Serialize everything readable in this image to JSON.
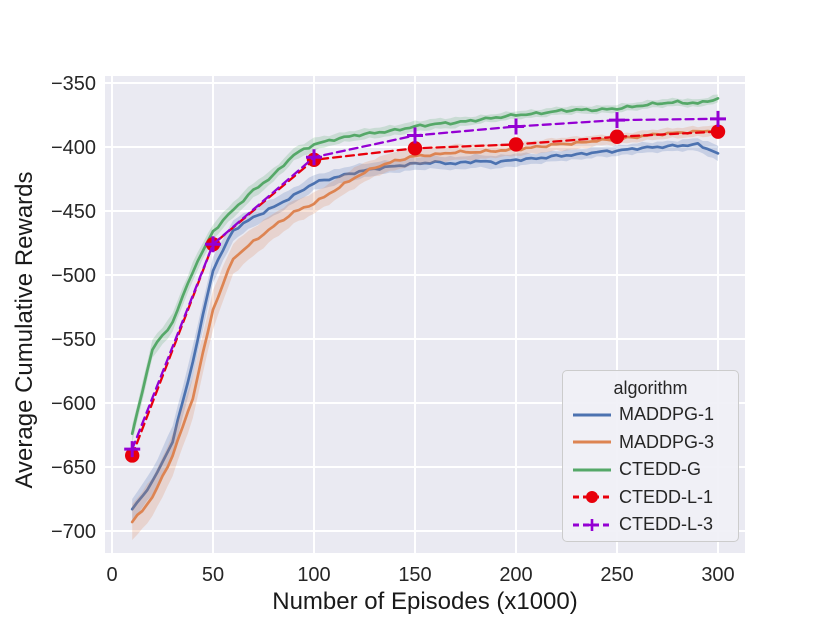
{
  "chart_data": {
    "type": "line",
    "title": "",
    "xlabel": "Number of Episodes (x1000)",
    "ylabel": "Average Cumulative Rewards",
    "xlim": [
      -3.5,
      313
    ],
    "ylim": [
      -717,
      -344
    ],
    "x_ticks": [
      0,
      50,
      100,
      150,
      200,
      250,
      300
    ],
    "y_ticks": [
      -350,
      -400,
      -450,
      -500,
      -550,
      -600,
      -650,
      -700
    ],
    "grid": true,
    "background_color": "#eaeaf2",
    "grid_color": "#ffffff",
    "legend": {
      "title": "algorithm",
      "position": "lower right"
    },
    "series": [
      {
        "name": "MADDPG-1",
        "color": "#4c72b0",
        "style": "solid",
        "marker": null,
        "x": [
          10,
          20,
          30,
          40,
          50,
          60,
          70,
          80,
          90,
          100,
          110,
          120,
          130,
          140,
          150,
          160,
          170,
          180,
          190,
          200,
          210,
          220,
          230,
          240,
          250,
          260,
          270,
          280,
          290,
          300
        ],
        "y": [
          -683,
          -662,
          -630,
          -568,
          -496,
          -465,
          -455,
          -447,
          -438,
          -428,
          -424,
          -420,
          -417,
          -415,
          -413,
          -412,
          -413,
          -411,
          -412,
          -410,
          -409,
          -407,
          -406,
          -404,
          -403,
          -401,
          -400,
          -399,
          -398,
          -405
        ],
        "band_halfwidth": [
          8,
          10,
          12,
          12,
          10,
          8,
          7,
          7,
          6,
          6,
          6,
          6,
          5,
          5,
          5,
          5,
          5,
          5,
          5,
          5,
          4,
          4,
          4,
          4,
          4,
          4,
          4,
          4,
          5,
          6
        ]
      },
      {
        "name": "MADDPG-3",
        "color": "#dd8452",
        "style": "solid",
        "marker": null,
        "x": [
          10,
          20,
          30,
          40,
          50,
          60,
          70,
          80,
          90,
          100,
          110,
          120,
          130,
          140,
          150,
          160,
          170,
          180,
          190,
          200,
          210,
          220,
          230,
          240,
          250,
          260,
          270,
          280,
          290,
          300
        ],
        "y": [
          -693,
          -674,
          -641,
          -596,
          -527,
          -487,
          -474,
          -462,
          -451,
          -444,
          -434,
          -424,
          -416,
          -411,
          -407,
          -406,
          -404,
          -404,
          -403,
          -402,
          -400,
          -398,
          -397,
          -395,
          -394,
          -392,
          -390,
          -389,
          -388,
          -387
        ],
        "band_halfwidth": [
          14,
          15,
          16,
          16,
          15,
          12,
          11,
          10,
          9,
          8,
          8,
          8,
          7,
          7,
          7,
          6,
          6,
          6,
          5,
          5,
          5,
          5,
          5,
          4,
          4,
          4,
          4,
          4,
          4,
          4
        ]
      },
      {
        "name": "CTEDD-G",
        "color": "#55a868",
        "style": "solid",
        "marker": null,
        "x": [
          10,
          20,
          30,
          40,
          50,
          60,
          70,
          80,
          90,
          100,
          110,
          120,
          130,
          140,
          150,
          160,
          170,
          180,
          190,
          200,
          210,
          220,
          230,
          240,
          250,
          260,
          270,
          280,
          290,
          300
        ],
        "y": [
          -624,
          -558,
          -537,
          -497,
          -466,
          -449,
          -434,
          -422,
          -406,
          -398,
          -394,
          -391,
          -389,
          -387,
          -384,
          -382,
          -381,
          -379,
          -377,
          -375,
          -374,
          -372,
          -371,
          -371,
          -370,
          -368,
          -366,
          -365,
          -366,
          -362
        ],
        "band_halfwidth": [
          7,
          7,
          7,
          7,
          6,
          6,
          6,
          5,
          5,
          5,
          4,
          4,
          4,
          4,
          4,
          4,
          4,
          3,
          3,
          3,
          3,
          3,
          3,
          3,
          3,
          3,
          3,
          3,
          3,
          3
        ]
      },
      {
        "name": "CTEDD-L-1",
        "color": "#e8000b",
        "style": "dashed",
        "marker": "circle",
        "x": [
          10,
          50,
          100,
          150,
          200,
          250,
          300
        ],
        "y": [
          -641,
          -476,
          -410,
          -401,
          -398,
          -392,
          -388
        ]
      },
      {
        "name": "CTEDD-L-3",
        "color": "#9400d3",
        "style": "dashed",
        "marker": "plus",
        "x": [
          10,
          50,
          100,
          150,
          200,
          250,
          300
        ],
        "y": [
          -636,
          -476,
          -408,
          -391,
          -384,
          -379,
          -378
        ]
      }
    ]
  }
}
